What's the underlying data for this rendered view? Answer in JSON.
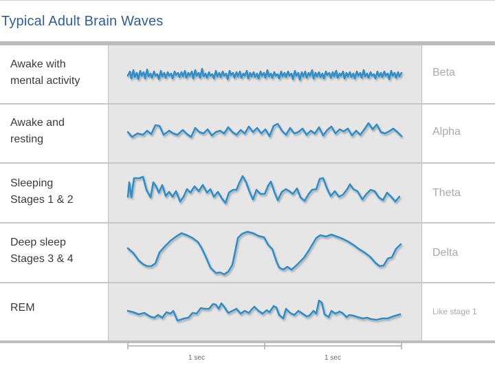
{
  "title": "Typical Adult Brain Waves",
  "rows": [
    {
      "label_1": "Awake with",
      "label_2": "mental activity",
      "wave": "Beta"
    },
    {
      "label_1": "Awake and",
      "label_2": "resting",
      "wave": "Alpha"
    },
    {
      "label_1": "Sleeping",
      "label_2": "Stages 1 & 2",
      "wave": "Theta"
    },
    {
      "label_1": "Deep sleep",
      "label_2": "Stages 3 & 4",
      "wave": "Delta"
    },
    {
      "label_1": "REM",
      "label_2": "",
      "wave": "Like stage 1"
    }
  ],
  "scale": {
    "segment_1": "1 sec",
    "segment_2": "1 sec"
  },
  "colors": {
    "wave": "#2e8ec9",
    "title": "#2f5e94"
  }
}
